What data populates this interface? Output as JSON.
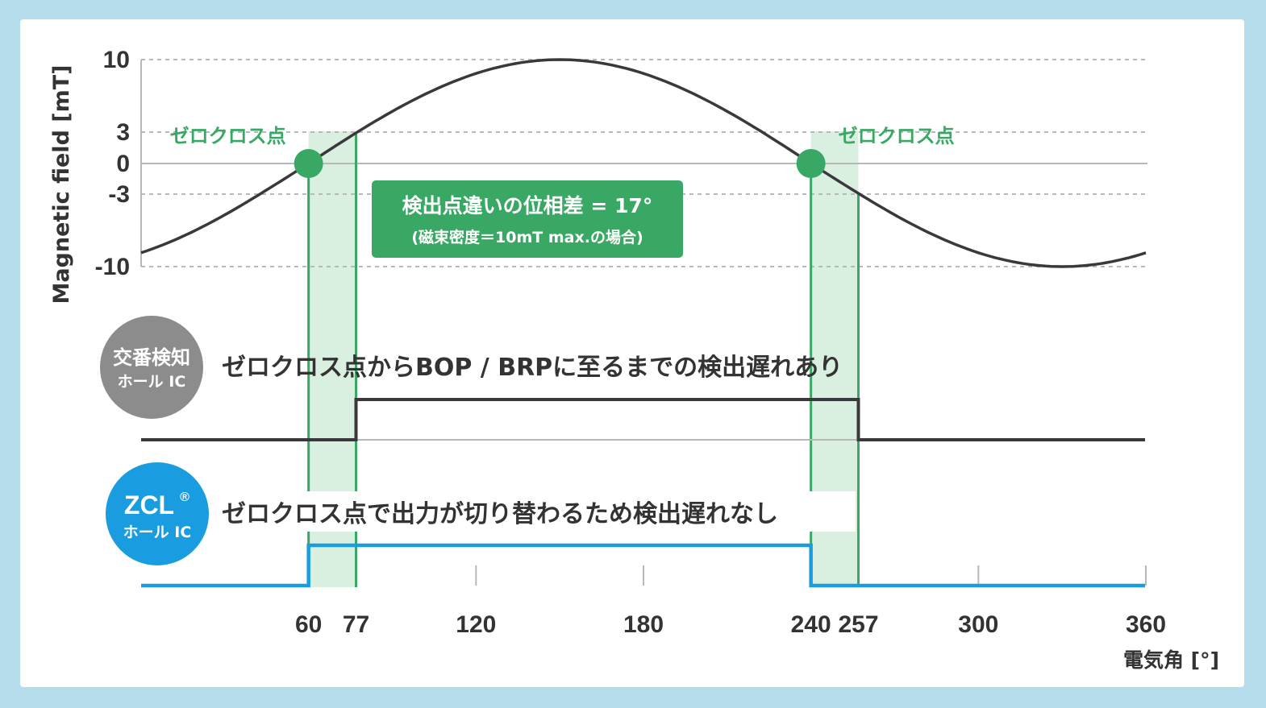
{
  "colors": {
    "background": "#b4dcea",
    "panel": "#ffffff",
    "green": "#3aa865",
    "green_band": "#d9efe0",
    "dark": "#3b383d",
    "blue": "#1a9de0",
    "gray_badge": "#8c8c8c",
    "grid": "#b8b8b8"
  },
  "chart_data": {
    "type": "line",
    "ylabel": "Magnetic field [mT]",
    "xlabel": "電気角 [°]",
    "ylim": [
      -10,
      10
    ],
    "xlim": [
      0,
      360
    ],
    "y_ticks": [
      "10",
      "3",
      "0",
      "-3",
      "-10"
    ],
    "y_tick_values": [
      10,
      3,
      0,
      -3,
      -10
    ],
    "x_ticks": [
      "60",
      "77",
      "120",
      "180",
      "240",
      "257",
      "300",
      "360"
    ],
    "x_tick_values": [
      60,
      77,
      120,
      180,
      240,
      257,
      300,
      360
    ],
    "series": [
      {
        "kind": "sine",
        "amplitude": 10,
        "zero_crossing_up": 60,
        "zero_crossing_down": 240
      }
    ],
    "zero_cross_points": [
      {
        "x": 60,
        "y": 0,
        "label": "ゼロクロス点"
      },
      {
        "x": 240,
        "y": 0,
        "label": "ゼロクロス点"
      }
    ],
    "thresholds": {
      "bop": 3,
      "brp": -3
    },
    "detection_bands": [
      [
        60,
        77
      ],
      [
        240,
        257
      ]
    ],
    "conventional_output": {
      "low": 0,
      "high": 1,
      "rise": 77,
      "fall": 257
    },
    "zcl_output": {
      "low": 0,
      "high": 1,
      "rise": 60,
      "fall": 240
    }
  },
  "annotation_box": {
    "line1": "検出点違いの位相差 = 17°",
    "line2": "(磁束密度＝10mT max.の場合)"
  },
  "conventional_badge": {
    "line1": "交番検知",
    "line2": "ホール IC"
  },
  "zcl_badge": {
    "line1": "ZCL",
    "mark": "®",
    "line2": "ホール IC"
  },
  "conventional_text": "ゼロクロス点からBOP / BRPに至るまでの検出遅れあり",
  "zcl_text": "ゼロクロス点で出力が切り替わるため検出遅れなし"
}
